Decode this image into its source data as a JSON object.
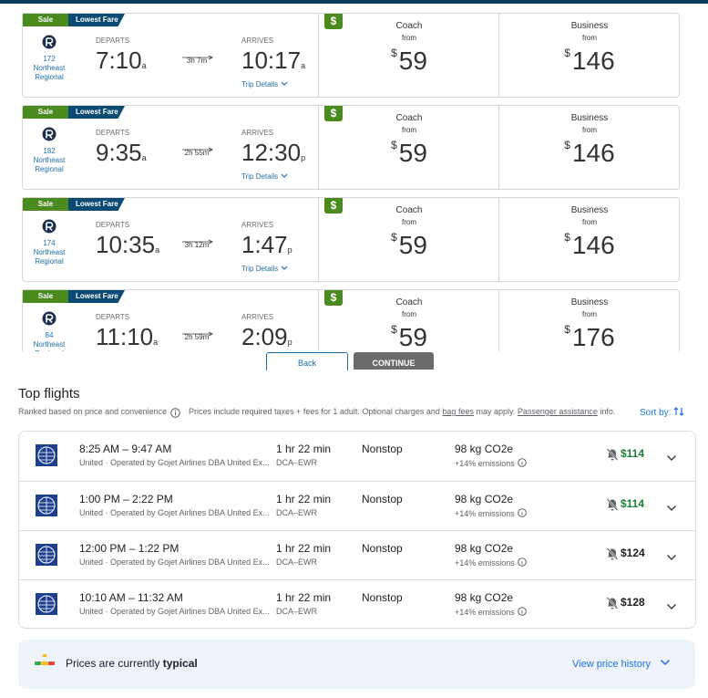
{
  "amtrak": {
    "labels": {
      "sale": "Sale",
      "lowest": "Lowest Fare",
      "departs": "DEPARTS",
      "arrives": "ARRIVES",
      "details": "Trip Details",
      "deal": "$",
      "from": "from",
      "currency": "$",
      "coach": "Coach",
      "business": "Business"
    },
    "trains": [
      {
        "number": "172",
        "route": "Northeast Regional",
        "dep": "7:10",
        "dep_ampm": "a",
        "duration": "3h 7m",
        "arr": "10:17",
        "arr_ampm": "a",
        "coach": "59",
        "business": "146"
      },
      {
        "number": "182",
        "route": "Northeast Regional",
        "dep": "9:35",
        "dep_ampm": "a",
        "duration": "2h 55m",
        "arr": "12:30",
        "arr_ampm": "p",
        "coach": "59",
        "business": "146"
      },
      {
        "number": "174",
        "route": "Northeast Regional",
        "dep": "10:35",
        "dep_ampm": "a",
        "duration": "3h 12m",
        "arr": "1:47",
        "arr_ampm": "p",
        "coach": "59",
        "business": "146"
      },
      {
        "number": "84",
        "route": "Northeast Regional",
        "dep": "11:10",
        "dep_ampm": "a",
        "duration": "2h 59m",
        "arr": "2:09",
        "arr_ampm": "p",
        "coach": "59",
        "business": "176"
      }
    ],
    "back": "Back",
    "continue": "CONTINUE"
  },
  "google": {
    "title": "Top flights",
    "ranked": "Ranked based on price and convenience",
    "note": [
      "Prices include required taxes + fees for 1 adult. Optional charges and ",
      "bag fees",
      " may apply. ",
      "Passenger assistance",
      " info."
    ],
    "sort": "Sort by:",
    "flights": [
      {
        "times": "8:25 AM – 9:47 AM",
        "airline": "United · Operated by Gojet Airlines DBA United Ex...",
        "duration": "1 hr 22 min",
        "route": "DCA–EWR",
        "stops": "Nonstop",
        "emissions": "98 kg CO2e",
        "delta": "+14% emissions",
        "price": "$114",
        "color": "#188038"
      },
      {
        "times": "1:00 PM – 2:22 PM",
        "airline": "United · Operated by Gojet Airlines DBA United Ex...",
        "duration": "1 hr 22 min",
        "route": "DCA–EWR",
        "stops": "Nonstop",
        "emissions": "98 kg CO2e",
        "delta": "+14% emissions",
        "price": "$114",
        "color": "#188038"
      },
      {
        "times": "12:00 PM – 1:22 PM",
        "airline": "United · Operated by Gojet Airlines DBA United Ex...",
        "duration": "1 hr 22 min",
        "route": "DCA–EWR",
        "stops": "Nonstop",
        "emissions": "98 kg CO2e",
        "delta": "+14% emissions",
        "price": "$124",
        "color": "#202124"
      },
      {
        "times": "10:10 AM – 11:32 AM",
        "airline": "United · Operated by Gojet Airlines DBA United Ex...",
        "duration": "1 hr 22 min",
        "route": "DCA–EWR",
        "stops": "Nonstop",
        "emissions": "98 kg CO2e",
        "delta": "+14% emissions",
        "price": "$128",
        "color": "#202124"
      }
    ],
    "insight": [
      "Prices are currently ",
      "typical"
    ],
    "history": "View price history"
  }
}
